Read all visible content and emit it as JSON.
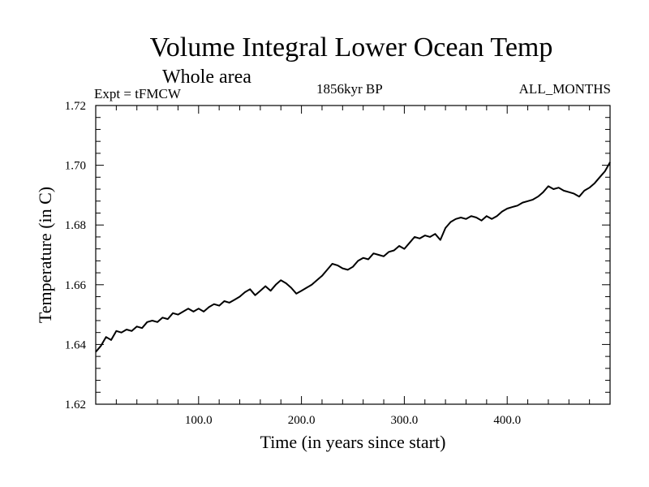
{
  "chart_data": {
    "type": "line",
    "title": "Volume Integral Lower Ocean Temp",
    "subtitle": "Whole area",
    "annotations": {
      "left": "Expt = tFMCW",
      "center": "1856kyr BP",
      "right": "ALL_MONTHS"
    },
    "xlabel": "Time (in years since start)",
    "ylabel": "Temperature (in C)",
    "xlim": [
      0,
      500
    ],
    "ylim": [
      1.62,
      1.72
    ],
    "x_ticks": [
      100,
      200,
      300,
      400
    ],
    "x_tick_labels": [
      "100.0",
      "200.0",
      "300.0",
      "400.0"
    ],
    "y_ticks": [
      1.62,
      1.64,
      1.66,
      1.68,
      1.7,
      1.72
    ],
    "y_tick_labels": [
      "1.62",
      "1.64",
      "1.66",
      "1.68",
      "1.70",
      "1.72"
    ],
    "series": [
      {
        "name": "Temperature",
        "color": "#000000",
        "x": [
          0,
          5,
          10,
          15,
          20,
          25,
          30,
          35,
          40,
          45,
          50,
          55,
          60,
          65,
          70,
          75,
          80,
          85,
          90,
          95,
          100,
          105,
          110,
          115,
          120,
          125,
          130,
          135,
          140,
          145,
          150,
          155,
          160,
          165,
          170,
          175,
          180,
          185,
          190,
          195,
          200,
          205,
          210,
          215,
          220,
          225,
          230,
          235,
          240,
          245,
          250,
          255,
          260,
          265,
          270,
          275,
          280,
          285,
          290,
          295,
          300,
          305,
          310,
          315,
          320,
          325,
          330,
          335,
          340,
          345,
          350,
          355,
          360,
          365,
          370,
          375,
          380,
          385,
          390,
          395,
          400,
          405,
          410,
          415,
          420,
          425,
          430,
          435,
          440,
          445,
          450,
          455,
          460,
          465,
          470,
          475,
          480,
          485,
          490,
          495,
          500
        ],
        "values": [
          1.6375,
          1.6395,
          1.6425,
          1.6415,
          1.6445,
          1.644,
          1.645,
          1.6445,
          1.646,
          1.6455,
          1.6475,
          1.648,
          1.6475,
          1.649,
          1.6485,
          1.6505,
          1.65,
          1.651,
          1.652,
          1.651,
          1.652,
          1.651,
          1.6525,
          1.6535,
          1.653,
          1.6545,
          1.654,
          1.655,
          1.656,
          1.6575,
          1.6585,
          1.6565,
          1.658,
          1.6595,
          1.658,
          1.66,
          1.6615,
          1.6605,
          1.659,
          1.657,
          1.658,
          1.659,
          1.66,
          1.6615,
          1.663,
          1.665,
          1.667,
          1.6665,
          1.6655,
          1.665,
          1.666,
          1.668,
          1.669,
          1.6685,
          1.6705,
          1.67,
          1.6695,
          1.671,
          1.6715,
          1.673,
          1.672,
          1.674,
          1.676,
          1.6755,
          1.6765,
          1.676,
          1.677,
          1.675,
          1.679,
          1.681,
          1.682,
          1.6825,
          1.682,
          1.683,
          1.6825,
          1.6815,
          1.683,
          1.682,
          1.683,
          1.6845,
          1.6855,
          1.686,
          1.6865,
          1.6875,
          1.688,
          1.6885,
          1.6895,
          1.691,
          1.693,
          1.692,
          1.6925,
          1.6915,
          1.691,
          1.6905,
          1.6895,
          1.6915,
          1.6925,
          1.694,
          1.696,
          1.698,
          1.701
        ]
      }
    ]
  }
}
